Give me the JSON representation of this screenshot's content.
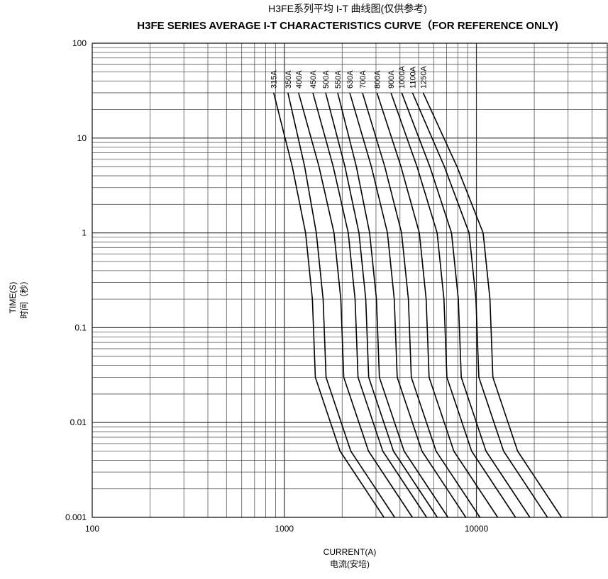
{
  "chart_data": {
    "type": "line",
    "title": "H3FE系列平均 I-T 曲线图(仅供参考)",
    "subtitle": "H3FE SERIES AVERAGE I-T CHARACTERISTICS CURVE（FOR REFERENCE ONLY)",
    "y_label": "TIME(S)",
    "y_label_2": "时间（秒）",
    "x_label": "CURRENT(A)",
    "x_label_2": "电流(安培)",
    "x_log": true,
    "y_log": true,
    "grid": true,
    "minor_grid": true,
    "xlim": [
      100,
      48000
    ],
    "ylim": [
      0.001,
      100
    ],
    "xticks": [
      100,
      1000,
      10000
    ],
    "yticks": [
      0.001,
      0.01,
      0.1,
      1,
      10,
      100
    ],
    "y": [
      30,
      5,
      1,
      0.2,
      0.03,
      0.005,
      0.001
    ],
    "series": [
      {
        "name": "315A",
        "color": "#000000",
        "x": [
          880,
          1100,
          1290,
          1400,
          1450,
          1950,
          3300
        ]
      },
      {
        "name": "350A",
        "color": "#000000",
        "x": [
          1044,
          1276,
          1467,
          1592,
          1649,
          2217,
          3752
        ]
      },
      {
        "name": "400A",
        "color": "#000000",
        "x": [
          1186,
          1515,
          1814,
          1968,
          2039,
          2742,
          4640
        ]
      },
      {
        "name": "450A",
        "color": "#000000",
        "x": [
          1408,
          1797,
          2152,
          2335,
          2419,
          3253,
          5504
        ]
      },
      {
        "name": "500A",
        "color": "#000000",
        "x": [
          1641,
          2068,
          2446,
          2654,
          2749,
          3697,
          6257
        ]
      },
      {
        "name": "550A",
        "color": "#000000",
        "x": [
          1896,
          2371,
          2780,
          3017,
          3125,
          4202,
          7112
        ]
      },
      {
        "name": "630A",
        "color": "#000000",
        "x": [
          2191,
          2838,
          3442,
          3735,
          3869,
          5203,
          8804
        ]
      },
      {
        "name": "700A",
        "color": "#000000",
        "x": [
          2552,
          3333,
          4076,
          4424,
          4582,
          6162,
          10428
        ]
      },
      {
        "name": "800A",
        "color": "#000000",
        "x": [
          3036,
          4048,
          5044,
          5474,
          5670,
          7625,
          12903
        ]
      },
      {
        "name": "900A",
        "color": "#000000",
        "x": [
          3590,
          4906,
          6244,
          6776,
          7018,
          9438,
          15972
        ]
      },
      {
        "name": "1000A",
        "color": "#000000",
        "x": [
          4083,
          5720,
          7418,
          8050,
          8338,
          11213,
          18975
        ]
      },
      {
        "name": "1100A",
        "color": "#000000",
        "x": [
          4646,
          6809,
          9159,
          9940,
          10295,
          13845,
          23430
        ]
      },
      {
        "name": "1250A",
        "color": "#000000",
        "x": [
          5280,
          7920,
          10836,
          11760,
          12180,
          16380,
          27720
        ]
      }
    ]
  }
}
